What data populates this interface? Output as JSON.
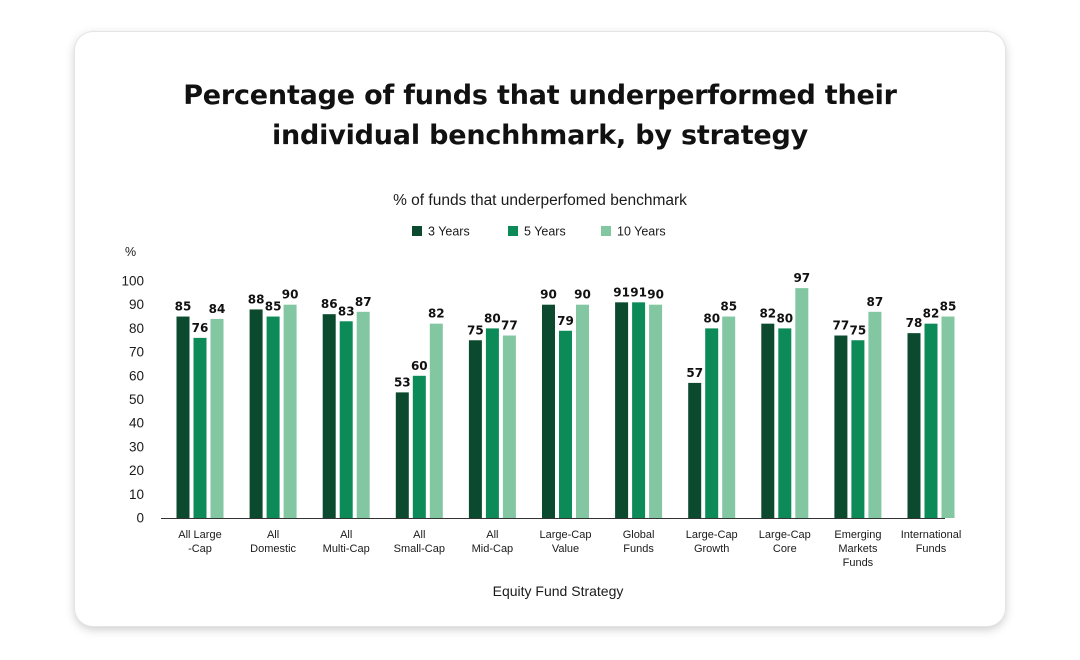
{
  "title_line1": "Percentage of funds that underperformed their",
  "title_line2": "individual benchhmark, by strategy",
  "chart_data": {
    "type": "bar",
    "subtitle": "% of funds that underperfomed benchmark",
    "ylabel": "%",
    "xlabel": "Equity Fund Strategy",
    "ylim": [
      0,
      100
    ],
    "yticks": [
      0,
      10,
      20,
      30,
      40,
      50,
      60,
      70,
      80,
      90,
      100
    ],
    "legend_position": "top-center",
    "grid": false,
    "categories": [
      [
        "All Large",
        "-Cap"
      ],
      [
        "All",
        "Domestic"
      ],
      [
        "All",
        "Multi-Cap"
      ],
      [
        "All",
        "Small-Cap"
      ],
      [
        "All",
        "Mid-Cap"
      ],
      [
        "Large-Cap",
        "Value"
      ],
      [
        "Global",
        "Funds"
      ],
      [
        "Large-Cap",
        "Growth"
      ],
      [
        "Large-Cap",
        "Core"
      ],
      [
        "Emerging",
        "Markets",
        "Funds"
      ],
      [
        "International",
        "Funds"
      ]
    ],
    "series": [
      {
        "name": "3 Years",
        "color": "#0b4a2e",
        "values": [
          85,
          88,
          86,
          53,
          75,
          90,
          91,
          57,
          82,
          77,
          78
        ]
      },
      {
        "name": "5 Years",
        "color": "#0c8a57",
        "values": [
          76,
          85,
          83,
          60,
          80,
          79,
          91,
          80,
          80,
          75,
          82
        ]
      },
      {
        "name": "10 Years",
        "color": "#82c7a2",
        "values": [
          84,
          90,
          87,
          82,
          77,
          90,
          90,
          85,
          97,
          87,
          85
        ]
      }
    ]
  }
}
